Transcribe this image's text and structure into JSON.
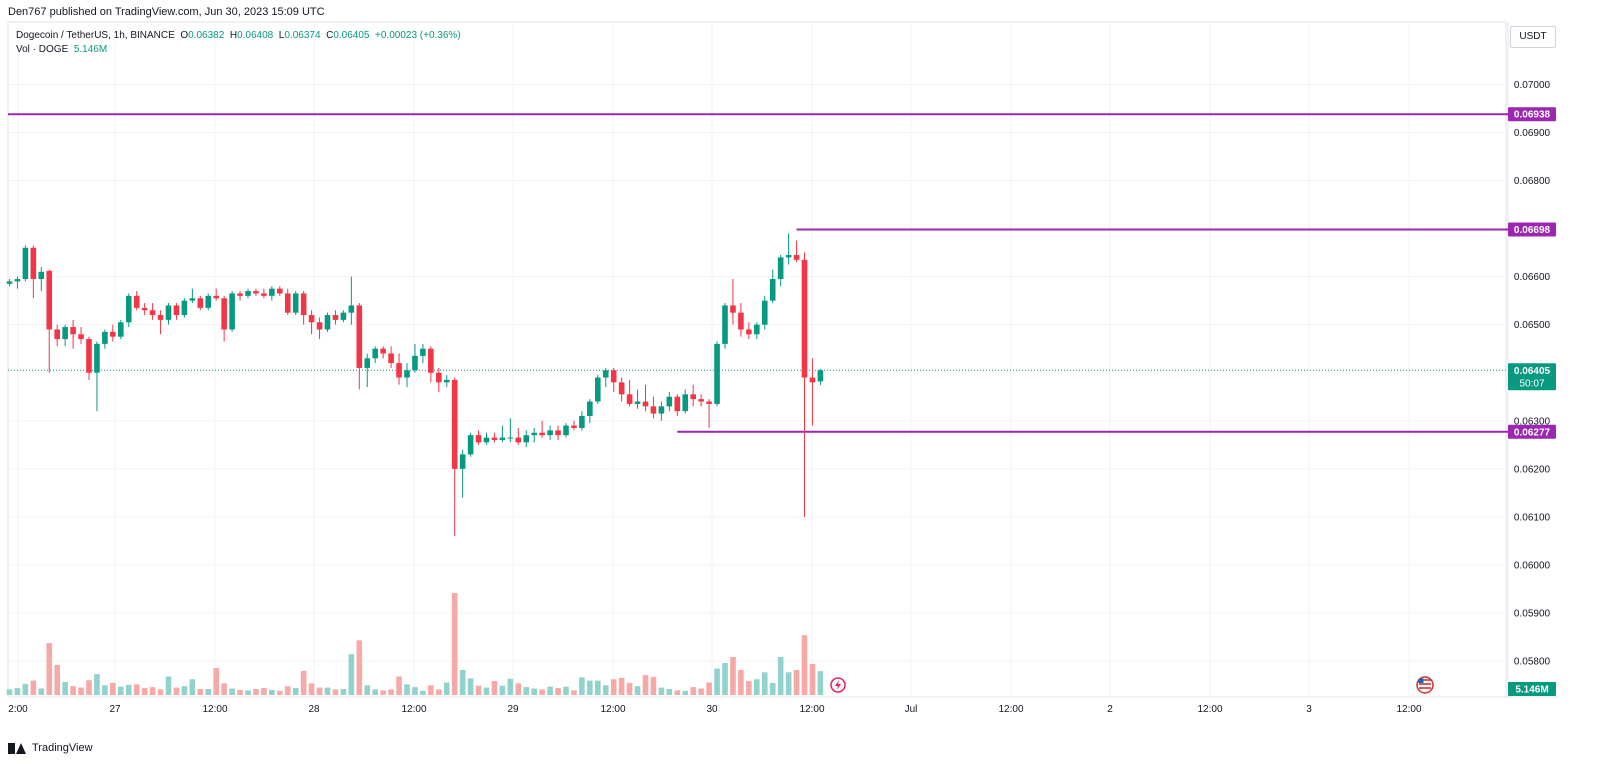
{
  "header": {
    "publisher_line": "Den767 published on TradingView.com, Jun 30, 2023 15:09 UTC"
  },
  "legend": {
    "symbol": "Dogecoin / TetherUS, 1h, BINANCE",
    "open_label": "O",
    "open": "0.06382",
    "high_label": "H",
    "high": "0.06408",
    "low_label": "L",
    "low": "0.06374",
    "close_label": "C",
    "close": "0.06405",
    "change": "+0.00023 (+0.36%)",
    "volume_label": "Vol · DOGE",
    "volume": "5.146M"
  },
  "currency_button": "USDT",
  "footer": {
    "brand": "TradingView"
  },
  "colors": {
    "up": "#089981",
    "down": "#f23645",
    "vol_up": "#92d2cc",
    "vol_down": "#f7a9a7",
    "level_line": "#9c27b0",
    "grid": "#f0f3fa",
    "axis_text": "#131722"
  },
  "chart_data": {
    "type": "candlestick",
    "title": "Dogecoin / TetherUS, 1h, BINANCE",
    "x_labels": [
      "2:00",
      "27",
      "12:00",
      "28",
      "12:00",
      "29",
      "12:00",
      "30",
      "12:00",
      "Jul",
      "12:00",
      "2",
      "12:00",
      "3",
      "12:00"
    ],
    "y_ticks": [
      "0.07000",
      "0.06900",
      "0.06800",
      "0.06600",
      "0.06500",
      "0.06300",
      "0.06200",
      "0.06100",
      "0.06000",
      "0.05900",
      "0.05800"
    ],
    "ylim": [
      0.05725,
      0.0713
    ],
    "price_levels": [
      {
        "label": "0.06938",
        "value": 0.06938,
        "extends_full_width": true
      },
      {
        "label": "0.06698",
        "value": 0.06698,
        "extends_full_width": false
      },
      {
        "label": "0.06277",
        "value": 0.06277,
        "extends_full_width": false
      }
    ],
    "last_price": {
      "label": "0.06405",
      "countdown": "50:07",
      "value": 0.06405
    },
    "volume_last_label": "5.146M",
    "candles": [
      [
        0.06585,
        0.06595,
        0.0658,
        0.0659,
        1.2
      ],
      [
        0.0659,
        0.066,
        0.06575,
        0.06595,
        1.5
      ],
      [
        0.06595,
        0.06665,
        0.0659,
        0.0666,
        2.4
      ],
      [
        0.0666,
        0.06665,
        0.06555,
        0.06595,
        3.1
      ],
      [
        0.06595,
        0.0662,
        0.0657,
        0.0661,
        1.4
      ],
      [
        0.06612,
        0.06615,
        0.064,
        0.0649,
        11.2
      ],
      [
        0.0649,
        0.065,
        0.06455,
        0.0647,
        6.5
      ],
      [
        0.0647,
        0.065,
        0.06455,
        0.06495,
        2.8
      ],
      [
        0.06495,
        0.0651,
        0.0645,
        0.0648,
        1.9
      ],
      [
        0.0648,
        0.06495,
        0.0646,
        0.0647,
        1.6
      ],
      [
        0.0647,
        0.06475,
        0.06385,
        0.064,
        3.2
      ],
      [
        0.064,
        0.06465,
        0.0632,
        0.0646,
        4.5
      ],
      [
        0.0646,
        0.0649,
        0.0645,
        0.06485,
        2.1
      ],
      [
        0.06485,
        0.065,
        0.06465,
        0.06475,
        2.6
      ],
      [
        0.06475,
        0.0651,
        0.0647,
        0.06505,
        1.8
      ],
      [
        0.06505,
        0.06565,
        0.06495,
        0.0656,
        2.2
      ],
      [
        0.0656,
        0.0657,
        0.0653,
        0.06535,
        2.3
      ],
      [
        0.06535,
        0.06545,
        0.0652,
        0.0653,
        1.5
      ],
      [
        0.0653,
        0.06545,
        0.0651,
        0.0652,
        1.7
      ],
      [
        0.0652,
        0.0653,
        0.0648,
        0.0651,
        1.2
      ],
      [
        0.0651,
        0.06545,
        0.065,
        0.0654,
        4.0
      ],
      [
        0.0654,
        0.06545,
        0.0651,
        0.0652,
        1.6
      ],
      [
        0.0652,
        0.06555,
        0.06515,
        0.0655,
        1.9
      ],
      [
        0.0655,
        0.06575,
        0.06545,
        0.06555,
        3.4
      ],
      [
        0.06555,
        0.0656,
        0.0653,
        0.06535,
        1.3
      ],
      [
        0.06535,
        0.06565,
        0.0653,
        0.0656,
        1.3
      ],
      [
        0.0656,
        0.06575,
        0.0655,
        0.06555,
        5.8
      ],
      [
        0.06555,
        0.0656,
        0.06465,
        0.0649,
        2.5
      ],
      [
        0.0649,
        0.0657,
        0.06485,
        0.06565,
        1.4
      ],
      [
        0.06565,
        0.0657,
        0.0655,
        0.0656,
        1.1
      ],
      [
        0.0656,
        0.06575,
        0.06555,
        0.0657,
        1.0
      ],
      [
        0.0657,
        0.06575,
        0.0656,
        0.06565,
        1.3
      ],
      [
        0.06565,
        0.06575,
        0.06555,
        0.0656,
        1.5
      ],
      [
        0.0656,
        0.0658,
        0.0655,
        0.06575,
        1.1
      ],
      [
        0.06575,
        0.0658,
        0.0656,
        0.06565,
        0.9
      ],
      [
        0.06565,
        0.06575,
        0.0652,
        0.06525,
        1.9
      ],
      [
        0.06525,
        0.0657,
        0.0652,
        0.06565,
        1.5
      ],
      [
        0.06565,
        0.0657,
        0.065,
        0.0652,
        5.2
      ],
      [
        0.0652,
        0.0653,
        0.0648,
        0.06505,
        2.5
      ],
      [
        0.06505,
        0.06515,
        0.0647,
        0.0649,
        1.6
      ],
      [
        0.0649,
        0.06525,
        0.06485,
        0.0652,
        1.6
      ],
      [
        0.0652,
        0.0653,
        0.065,
        0.0651,
        1.2
      ],
      [
        0.0651,
        0.0653,
        0.06505,
        0.06525,
        1.3
      ],
      [
        0.06525,
        0.066,
        0.065,
        0.0654,
        8.8
      ],
      [
        0.0654,
        0.06545,
        0.06365,
        0.0641,
        11.8
      ],
      [
        0.0641,
        0.0644,
        0.0637,
        0.0643,
        2.1
      ],
      [
        0.0643,
        0.06455,
        0.0642,
        0.0645,
        1.2
      ],
      [
        0.0645,
        0.06455,
        0.0643,
        0.0644,
        1.0
      ],
      [
        0.0644,
        0.06455,
        0.0641,
        0.0642,
        1.2
      ],
      [
        0.0642,
        0.0644,
        0.06375,
        0.0639,
        4.0
      ],
      [
        0.0639,
        0.0642,
        0.0637,
        0.06405,
        2.3
      ],
      [
        0.06405,
        0.0646,
        0.064,
        0.06435,
        1.7
      ],
      [
        0.06435,
        0.0646,
        0.0642,
        0.0645,
        0.9
      ],
      [
        0.0645,
        0.06455,
        0.0638,
        0.064,
        2.1
      ],
      [
        0.064,
        0.0641,
        0.0636,
        0.0638,
        1.2
      ],
      [
        0.0638,
        0.06395,
        0.0637,
        0.06385,
        2.7
      ],
      [
        0.06385,
        0.0639,
        0.0606,
        0.062,
        22.0
      ],
      [
        0.062,
        0.0624,
        0.0614,
        0.0623,
        5.4
      ],
      [
        0.0623,
        0.06275,
        0.06225,
        0.0627,
        3.6
      ],
      [
        0.0627,
        0.0628,
        0.0625,
        0.06255,
        2.0
      ],
      [
        0.06255,
        0.06275,
        0.0625,
        0.06265,
        1.6
      ],
      [
        0.06265,
        0.06275,
        0.06255,
        0.0626,
        3.0
      ],
      [
        0.0626,
        0.0629,
        0.06255,
        0.06265,
        2.0
      ],
      [
        0.06265,
        0.06305,
        0.06255,
        0.06265,
        3.5
      ],
      [
        0.06265,
        0.06285,
        0.0625,
        0.06255,
        2.5
      ],
      [
        0.06255,
        0.0628,
        0.06245,
        0.0627,
        1.7
      ],
      [
        0.0627,
        0.06285,
        0.06255,
        0.06275,
        1.4
      ],
      [
        0.06275,
        0.063,
        0.06265,
        0.0627,
        1.2
      ],
      [
        0.0627,
        0.0629,
        0.0626,
        0.0628,
        1.8
      ],
      [
        0.0628,
        0.0629,
        0.0626,
        0.0627,
        1.5
      ],
      [
        0.0627,
        0.06295,
        0.06265,
        0.0629,
        1.8
      ],
      [
        0.0629,
        0.063,
        0.0628,
        0.06285,
        1.0
      ],
      [
        0.06285,
        0.0632,
        0.0628,
        0.0631,
        3.8
      ],
      [
        0.0631,
        0.06345,
        0.06295,
        0.0634,
        3.1
      ],
      [
        0.0634,
        0.06395,
        0.06335,
        0.0639,
        3.1
      ],
      [
        0.0639,
        0.0641,
        0.0637,
        0.06405,
        2.1
      ],
      [
        0.06405,
        0.0641,
        0.0636,
        0.0638,
        3.4
      ],
      [
        0.0638,
        0.0639,
        0.0634,
        0.06355,
        3.7
      ],
      [
        0.06355,
        0.06385,
        0.0633,
        0.06335,
        2.6
      ],
      [
        0.06335,
        0.06365,
        0.06325,
        0.0634,
        1.9
      ],
      [
        0.0634,
        0.06375,
        0.0632,
        0.0633,
        4.3
      ],
      [
        0.0633,
        0.0635,
        0.06305,
        0.06315,
        3.9
      ],
      [
        0.06315,
        0.0634,
        0.063,
        0.0633,
        1.6
      ],
      [
        0.0633,
        0.0636,
        0.0632,
        0.0635,
        1.3
      ],
      [
        0.0635,
        0.06355,
        0.0631,
        0.0632,
        1.0
      ],
      [
        0.0632,
        0.06365,
        0.06315,
        0.06355,
        0.9
      ],
      [
        0.06355,
        0.06375,
        0.0633,
        0.06345,
        1.7
      ],
      [
        0.06345,
        0.06355,
        0.0633,
        0.0634,
        1.4
      ],
      [
        0.0634,
        0.06345,
        0.06285,
        0.06335,
        2.7
      ],
      [
        0.06335,
        0.06465,
        0.0633,
        0.0646,
        5.7
      ],
      [
        0.0646,
        0.06545,
        0.0645,
        0.0654,
        6.9
      ],
      [
        0.0654,
        0.06595,
        0.065,
        0.06525,
        8.2
      ],
      [
        0.06525,
        0.06545,
        0.06475,
        0.0649,
        5.4
      ],
      [
        0.0649,
        0.06505,
        0.0647,
        0.0648,
        3.0
      ],
      [
        0.0648,
        0.06505,
        0.0647,
        0.065,
        3.4
      ],
      [
        0.065,
        0.0656,
        0.0649,
        0.0655,
        4.9
      ],
      [
        0.0655,
        0.06615,
        0.06545,
        0.06595,
        2.6
      ],
      [
        0.06595,
        0.06645,
        0.0658,
        0.0664,
        8.2
      ],
      [
        0.0664,
        0.0669,
        0.06625,
        0.06645,
        4.9
      ],
      [
        0.06645,
        0.06675,
        0.0663,
        0.06635,
        5.4
      ],
      [
        0.06635,
        0.0665,
        0.061,
        0.0639,
        12.9
      ],
      [
        0.0639,
        0.0643,
        0.0629,
        0.0638,
        6.7
      ],
      [
        0.06382,
        0.06408,
        0.06374,
        0.06405,
        5.146
      ]
    ]
  }
}
